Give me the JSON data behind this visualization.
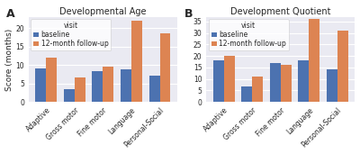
{
  "chart_A": {
    "title": "Developmental Age",
    "ylabel": "Score (months)",
    "categories": [
      "Adaptive",
      "Gross motor",
      "Fine motor",
      "Language",
      "Personal-Social"
    ],
    "baseline": [
      9,
      3.5,
      8.2,
      8.8,
      7.0
    ],
    "followup": [
      12,
      6.5,
      9.5,
      22,
      18.5
    ],
    "ylim": [
      0,
      23
    ],
    "yticks": [
      0,
      5,
      10,
      15,
      20
    ]
  },
  "chart_B": {
    "title": "Development Quotient",
    "ylabel": "",
    "categories": [
      "Adaptive",
      "Gross motor",
      "Fine motor",
      "Language",
      "Personal-Social"
    ],
    "baseline": [
      18,
      6.8,
      17,
      18,
      14
    ],
    "followup": [
      20,
      11,
      16,
      36,
      31
    ],
    "ylim": [
      0,
      37
    ],
    "yticks": [
      0,
      5,
      10,
      15,
      20,
      25,
      30,
      35
    ]
  },
  "legend_title": "visit",
  "legend_labels": [
    "baseline",
    "12-month follow-up"
  ],
  "color_baseline": "#4c72b0",
  "color_followup": "#dd8452",
  "bar_width": 0.38,
  "label_A": "A",
  "label_B": "B",
  "bg_color": "#ffffff",
  "axes_bg": "#eaeaf2",
  "grid_color": "#ffffff",
  "title_fontsize": 7,
  "axis_fontsize": 6.5,
  "tick_fontsize": 5.5,
  "legend_fontsize": 5.5
}
